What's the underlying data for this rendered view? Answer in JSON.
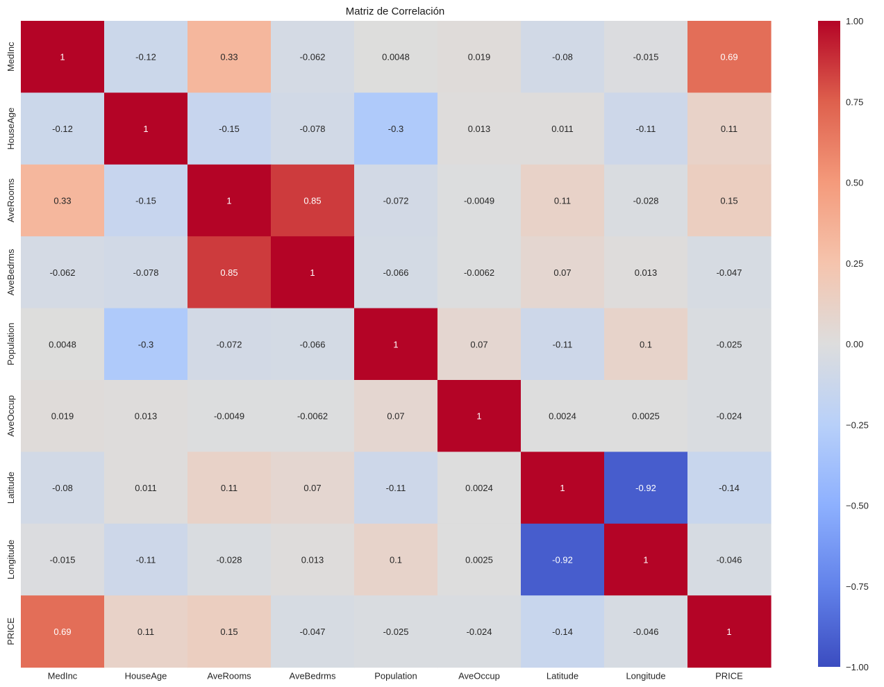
{
  "chart_data": {
    "type": "heatmap",
    "title": "Matriz de Correlación",
    "xlabel": "",
    "ylabel": "",
    "colormap": "coolwarm",
    "vmin": -1.0,
    "vmax": 1.0,
    "rows": [
      "MedInc",
      "HouseAge",
      "AveRooms",
      "AveBedrms",
      "Population",
      "AveOccup",
      "Latitude",
      "Longitude",
      "PRICE"
    ],
    "columns": [
      "MedInc",
      "HouseAge",
      "AveRooms",
      "AveBedrms",
      "Population",
      "AveOccup",
      "Latitude",
      "Longitude",
      "PRICE"
    ],
    "values": [
      [
        1,
        -0.12,
        0.33,
        -0.062,
        0.0048,
        0.019,
        -0.08,
        -0.015,
        0.69
      ],
      [
        -0.12,
        1,
        -0.15,
        -0.078,
        -0.3,
        0.013,
        0.011,
        -0.11,
        0.11
      ],
      [
        0.33,
        -0.15,
        1,
        0.85,
        -0.072,
        -0.0049,
        0.11,
        -0.028,
        0.15
      ],
      [
        -0.062,
        -0.078,
        0.85,
        1,
        -0.066,
        -0.0062,
        0.07,
        0.013,
        -0.047
      ],
      [
        0.0048,
        -0.3,
        -0.072,
        -0.066,
        1,
        0.07,
        -0.11,
        0.1,
        -0.025
      ],
      [
        0.019,
        0.013,
        -0.0049,
        -0.0062,
        0.07,
        1,
        0.0024,
        0.0025,
        -0.024
      ],
      [
        -0.08,
        0.011,
        0.11,
        0.07,
        -0.11,
        0.0024,
        1,
        -0.92,
        -0.14
      ],
      [
        -0.015,
        -0.11,
        -0.028,
        0.013,
        0.1,
        0.0025,
        -0.92,
        1,
        -0.046
      ],
      [
        0.69,
        0.11,
        0.15,
        -0.047,
        -0.025,
        -0.024,
        -0.14,
        -0.046,
        1
      ]
    ],
    "labels": [
      [
        "1",
        "-0.12",
        "0.33",
        "-0.062",
        "0.0048",
        "0.019",
        "-0.08",
        "-0.015",
        "0.69"
      ],
      [
        "-0.12",
        "1",
        "-0.15",
        "-0.078",
        "-0.3",
        "0.013",
        "0.011",
        "-0.11",
        "0.11"
      ],
      [
        "0.33",
        "-0.15",
        "1",
        "0.85",
        "-0.072",
        "-0.0049",
        "0.11",
        "-0.028",
        "0.15"
      ],
      [
        "-0.062",
        "-0.078",
        "0.85",
        "1",
        "-0.066",
        "-0.0062",
        "0.07",
        "0.013",
        "-0.047"
      ],
      [
        "0.0048",
        "-0.3",
        "-0.072",
        "-0.066",
        "1",
        "0.07",
        "-0.11",
        "0.1",
        "-0.025"
      ],
      [
        "0.019",
        "0.013",
        "-0.0049",
        "-0.0062",
        "0.07",
        "1",
        "0.0024",
        "0.0025",
        "-0.024"
      ],
      [
        "-0.08",
        "0.011",
        "0.11",
        "0.07",
        "-0.11",
        "0.0024",
        "1",
        "-0.92",
        "-0.14"
      ],
      [
        "-0.015",
        "-0.11",
        "-0.028",
        "0.013",
        "0.1",
        "0.0025",
        "-0.92",
        "1",
        "-0.046"
      ],
      [
        "0.69",
        "0.11",
        "0.15",
        "-0.047",
        "-0.025",
        "-0.024",
        "-0.14",
        "-0.046",
        "1"
      ]
    ],
    "colorbar": {
      "ticks": [
        1.0,
        0.75,
        0.5,
        0.25,
        0.0,
        -0.25,
        -0.5,
        -0.75,
        -1.0
      ],
      "tick_labels": [
        "1.00",
        "0.75",
        "0.50",
        "0.25",
        "0.00",
        "−0.25",
        "−0.50",
        "−0.75",
        "−1.00"
      ]
    },
    "grid": false,
    "legend": "colorbar-right"
  }
}
